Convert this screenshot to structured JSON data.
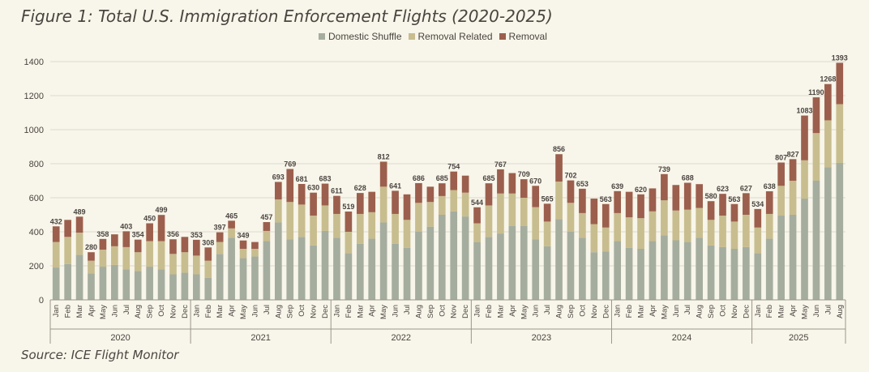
{
  "title": "Figure 1: Total U.S. Immigration Enforcement Flights (2020-2025)",
  "source": "Source: ICE Flight Monitor",
  "colors": {
    "domestic": "#a5ad9f",
    "related": "#c8bd8e",
    "removal": "#9c5f4d",
    "grid": "#dddacd",
    "axis": "#9a968a"
  },
  "chart_data": {
    "type": "bar",
    "stacked": true,
    "title": "Figure 1: Total U.S. Immigration Enforcement Flights (2020-2025)",
    "xlabel": "",
    "ylabel": "",
    "ylim": [
      0,
      1400
    ],
    "yticks": [
      0,
      200,
      400,
      600,
      800,
      1000,
      1200,
      1400
    ],
    "legend_position": "top-center",
    "grid": true,
    "categories": [
      "Jan",
      "Feb",
      "Mar",
      "Apr",
      "May",
      "Jun",
      "Jul",
      "Aug",
      "Sep",
      "Oct",
      "Nov",
      "Dec",
      "Jan",
      "Feb",
      "Mar",
      "Apr",
      "May",
      "Jun",
      "Jul",
      "Aug",
      "Sep",
      "Oct",
      "Nov",
      "Dec",
      "Jan",
      "Feb",
      "Mar",
      "Apr",
      "May",
      "Jun",
      "Jul",
      "Aug",
      "Sep",
      "Oct",
      "Nov",
      "Dec",
      "Jan",
      "Feb",
      "Mar",
      "Apr",
      "May",
      "Jun",
      "Jul",
      "Aug",
      "Sep",
      "Oct",
      "Nov",
      "Dec",
      "Jan",
      "Feb",
      "Mar",
      "Apr",
      "May",
      "Jun",
      "Jul",
      "Aug",
      "Sep",
      "Oct",
      "Nov",
      "Dec",
      "Jan",
      "Feb",
      "Mar",
      "Apr",
      "May",
      "Jun",
      "Jul",
      "Aug"
    ],
    "years": [
      {
        "label": "2020",
        "count": 12
      },
      {
        "label": "2021",
        "count": 12
      },
      {
        "label": "2022",
        "count": 12
      },
      {
        "label": "2023",
        "count": 12
      },
      {
        "label": "2024",
        "count": 12
      },
      {
        "label": "2025",
        "count": 8
      }
    ],
    "totals": [
      432,
      470,
      489,
      280,
      358,
      385,
      403,
      354,
      450,
      499,
      356,
      370,
      353,
      308,
      397,
      465,
      349,
      340,
      457,
      693,
      769,
      681,
      630,
      683,
      611,
      519,
      628,
      635,
      812,
      641,
      620,
      686,
      665,
      685,
      754,
      730,
      544,
      685,
      767,
      745,
      709,
      670,
      565,
      856,
      702,
      653,
      595,
      563,
      639,
      635,
      620,
      655,
      739,
      675,
      688,
      680,
      580,
      623,
      563,
      627,
      534,
      638,
      807,
      827,
      1083,
      1190,
      1268,
      1393
    ],
    "total_labels": [
      "432",
      "",
      "489",
      "280",
      "358",
      "",
      "403",
      "354",
      "450",
      "499",
      "356",
      "",
      "353",
      "308",
      "397",
      "465",
      "349",
      "",
      "457",
      "693",
      "769",
      "681",
      "630",
      "683",
      "611",
      "519",
      "628",
      "",
      "812",
      "641",
      "",
      "686",
      "",
      "685",
      "754",
      "",
      "544",
      "685",
      "767",
      "",
      "709",
      "670",
      "565",
      "856",
      "702",
      "653",
      "",
      "563",
      "639",
      "",
      "620",
      "",
      "739",
      "",
      "688",
      "",
      "580",
      "623",
      "563",
      "627",
      "534",
      "638",
      "807",
      "827",
      "1083",
      "1190",
      "1268",
      "1393"
    ],
    "series": [
      {
        "name": "Domestic Shuffle",
        "values": [
          190,
          210,
          265,
          155,
          195,
          205,
          180,
          170,
          195,
          180,
          150,
          160,
          150,
          130,
          270,
          365,
          245,
          255,
          345,
          455,
          355,
          370,
          320,
          405,
          365,
          275,
          330,
          360,
          455,
          330,
          305,
          400,
          430,
          500,
          520,
          490,
          340,
          370,
          390,
          435,
          435,
          355,
          315,
          475,
          400,
          365,
          280,
          285,
          345,
          305,
          300,
          345,
          380,
          350,
          340,
          365,
          320,
          310,
          300,
          310,
          275,
          360,
          495,
          500,
          595,
          700,
          780,
          805
        ]
      },
      {
        "name": "Removal Related",
        "values": [
          150,
          160,
          130,
          75,
          100,
          110,
          130,
          110,
          150,
          165,
          120,
          120,
          110,
          100,
          70,
          55,
          55,
          45,
          60,
          135,
          220,
          190,
          175,
          150,
          140,
          125,
          175,
          155,
          210,
          175,
          165,
          170,
          145,
          110,
          125,
          140,
          110,
          185,
          235,
          190,
          165,
          190,
          145,
          220,
          170,
          145,
          165,
          140,
          165,
          180,
          180,
          175,
          205,
          175,
          190,
          175,
          150,
          185,
          160,
          190,
          150,
          145,
          175,
          200,
          225,
          280,
          275,
          345
        ]
      },
      {
        "name": "Removal",
        "values": [
          92,
          100,
          94,
          50,
          63,
          70,
          93,
          74,
          105,
          154,
          86,
          90,
          93,
          78,
          57,
          45,
          49,
          40,
          52,
          103,
          194,
          121,
          135,
          128,
          106,
          119,
          123,
          120,
          147,
          136,
          150,
          116,
          90,
          75,
          109,
          100,
          94,
          130,
          142,
          120,
          109,
          125,
          105,
          161,
          132,
          143,
          150,
          138,
          129,
          150,
          140,
          135,
          154,
          150,
          158,
          140,
          110,
          128,
          103,
          127,
          109,
          133,
          137,
          127,
          263,
          210,
          213,
          243
        ]
      }
    ]
  }
}
